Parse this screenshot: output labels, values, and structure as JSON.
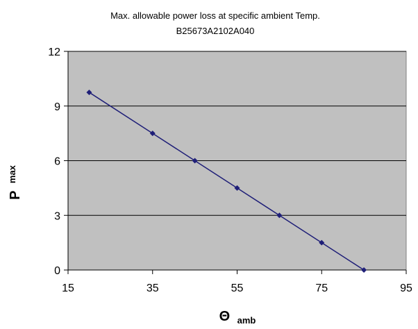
{
  "chart_data": {
    "type": "line",
    "title": "Max. allowable power loss at specific ambient Temp.",
    "subtitle": "B25673A2102A040",
    "xlabel": {
      "symbol": "Θ",
      "subscript": "amb"
    },
    "ylabel": {
      "symbol": "P",
      "subscript": "max"
    },
    "xlim": [
      15,
      95
    ],
    "ylim": [
      0,
      12
    ],
    "xticks": [
      15,
      35,
      55,
      75,
      95
    ],
    "yticks": [
      0,
      3,
      6,
      9,
      12
    ],
    "grid": {
      "horizontal": true,
      "vertical": false
    },
    "plot_background": "#c0c0c0",
    "series": [
      {
        "color": "#1f1f78",
        "marker": "diamond",
        "x": [
          20,
          35,
          45,
          55,
          65,
          75,
          85
        ],
        "y": [
          9.75,
          7.5,
          6.0,
          4.5,
          3.0,
          1.5,
          0.0
        ]
      }
    ]
  }
}
